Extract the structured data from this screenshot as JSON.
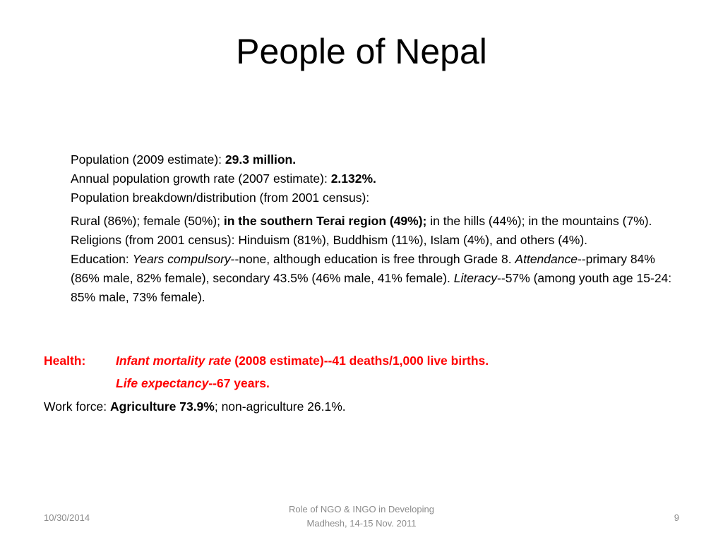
{
  "slide": {
    "title": "People of Nepal",
    "population": {
      "label": "Population (2009 estimate):  ",
      "value": "29.3 million."
    },
    "growth": {
      "label": "Annual population growth rate (2007 estimate):  ",
      "value": "2.132%."
    },
    "breakdown_label": "Population breakdown/distribution (from 2001 census):",
    "breakdown": {
      "part1": " Rural (86%); female (50%); ",
      "bold": "in the southern Terai region (49%);",
      "part2": " in the hills (44%); in the mountains (7%)."
    },
    "religions": "Religions (from 2001 census): Hinduism (81%), Buddhism (11%), Islam (4%), and others (4%).",
    "education": {
      "prefix": "Education: ",
      "years_label": "Years compulsory",
      "years_text": "--none, although education is free through Grade 8. ",
      "attendance_label": "Attendance",
      "attendance_text": "--primary 84% (86% male, 82% female), secondary 43.5% (46% male, 41% female). ",
      "literacy_label": "Literacy",
      "literacy_text": "--57% (among youth age 15-24: 85% male, 73% female)."
    },
    "health": {
      "label": "Health:",
      "infant_label": "Infant mortality rate",
      "infant_text": " (2008 estimate)--41 deaths/1,000 live births.",
      "life_label": "Life expectancy",
      "life_text": "--67 years."
    },
    "work": {
      "prefix": "Work force: ",
      "bold": "Agriculture 73.9%",
      "suffix": "; non-agriculture 26.1%."
    }
  },
  "footer": {
    "date": "10/30/2014",
    "center_line1": "Role of NGO & INGO in Developing",
    "center_line2": "Madhesh, 14-15 Nov. 2011",
    "page_number": "9"
  }
}
